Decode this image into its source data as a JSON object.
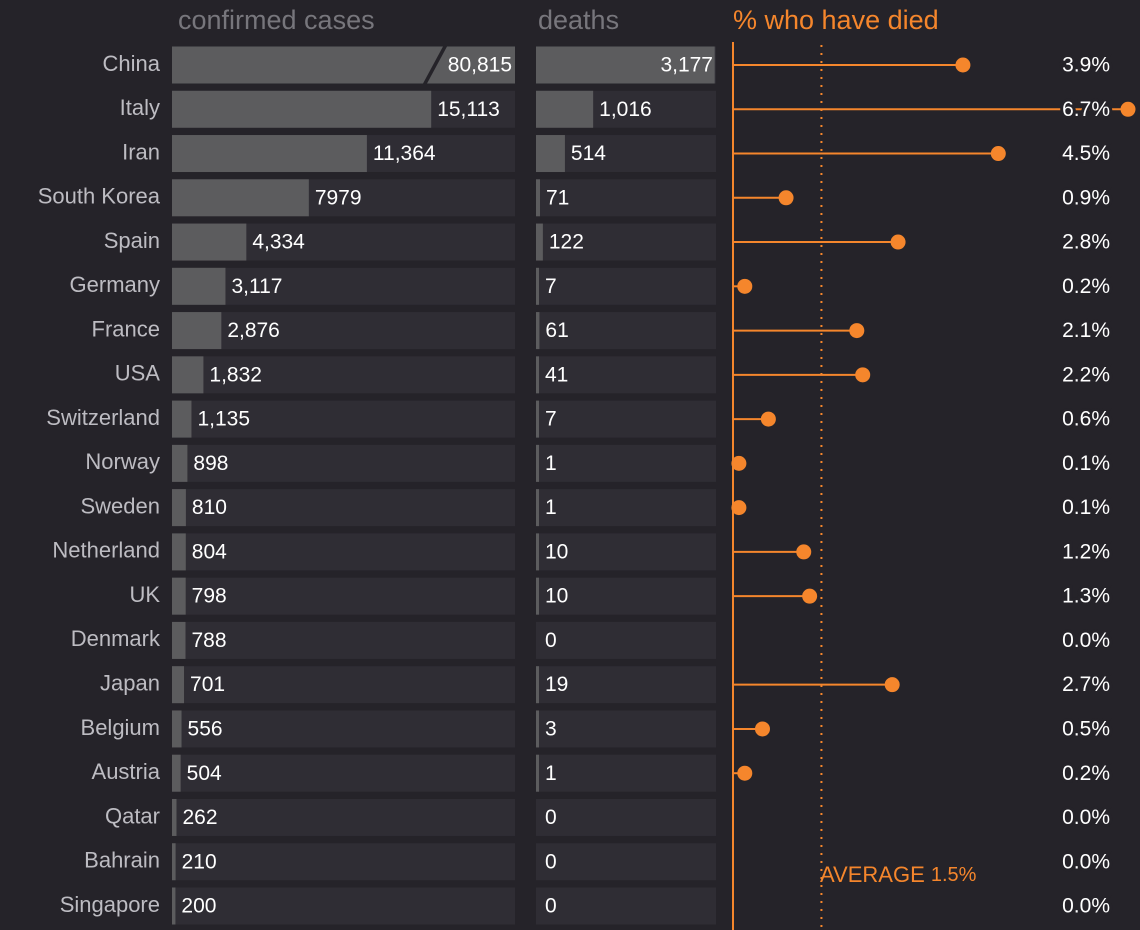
{
  "chart_data": {
    "type": "bar",
    "categories": [
      "China",
      "Italy",
      "Iran",
      "South Korea",
      "Spain",
      "Germany",
      "France",
      "USA",
      "Switzerland",
      "Norway",
      "Sweden",
      "Netherland",
      "UK",
      "Denmark",
      "Japan",
      "Belgium",
      "Austria",
      "Qatar",
      "Bahrain",
      "Singapore"
    ],
    "series": [
      {
        "name": "confirmed cases",
        "color": "#5c5c5e",
        "xlim": [
          0,
          20000
        ],
        "values": [
          80815,
          15113,
          11364,
          7979,
          4334,
          3117,
          2876,
          1832,
          1135,
          898,
          810,
          804,
          798,
          788,
          701,
          556,
          504,
          262,
          210,
          200
        ],
        "value_labels": [
          "80,815",
          "15,113",
          "11,364",
          "7979",
          "4,334",
          "3,117",
          "2,876",
          "1,832",
          "1,135",
          "898",
          "810",
          "804",
          "798",
          "788",
          "701",
          "556",
          "504",
          "262",
          "210",
          "200"
        ]
      },
      {
        "name": "deaths",
        "color": "#5c5c5e",
        "xlim": [
          0,
          3200
        ],
        "values": [
          3177,
          1016,
          514,
          71,
          122,
          7,
          61,
          41,
          7,
          1,
          1,
          10,
          10,
          0,
          19,
          3,
          1,
          0,
          0,
          0
        ],
        "value_labels": [
          "3,177",
          "1,016",
          "514",
          "71",
          "122",
          "7",
          "61",
          "41",
          "7",
          "1",
          "1",
          "10",
          "10",
          "0",
          "19",
          "3",
          "1",
          "0",
          "0",
          "0"
        ]
      },
      {
        "name": "% who have died",
        "color": "#f5862c",
        "xlim": [
          0,
          6.7
        ],
        "values": [
          3.9,
          6.7,
          4.5,
          0.9,
          2.8,
          0.2,
          2.1,
          2.2,
          0.6,
          0.1,
          0.1,
          1.2,
          1.3,
          0.0,
          2.7,
          0.5,
          0.2,
          0.0,
          0.0,
          0.0
        ],
        "value_labels": [
          "3.9%",
          "6.7%",
          "4.5%",
          "0.9%",
          "2.8%",
          "0.2%",
          "2.1%",
          "2.2%",
          "0.6%",
          "0.1%",
          "0.1%",
          "1.2%",
          "1.3%",
          "0.0%",
          "2.7%",
          "0.5%",
          "0.2%",
          "0.0%",
          "0.0%",
          "0.0%"
        ]
      }
    ],
    "zero_color": "#2f9cf0",
    "annotation": {
      "text": "AVERAGE",
      "value": 1.5,
      "value_label": "1.5%"
    }
  }
}
